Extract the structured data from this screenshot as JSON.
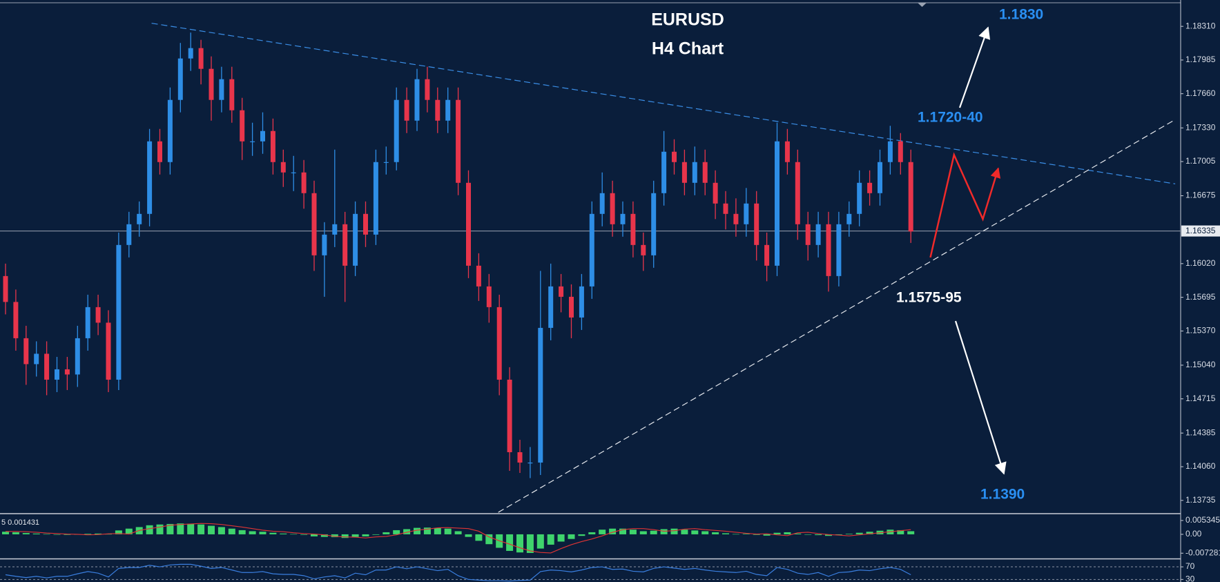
{
  "chart_data": {
    "type": "candlestick",
    "title": "EURUSD",
    "subtitle": "H4 Chart",
    "up_color": "#2e8ee6",
    "down_color": "#e8354b",
    "open": [
      1.159,
      1.1565,
      1.153,
      1.1505,
      1.1515,
      1.149,
      1.15,
      1.1495,
      1.153,
      1.156,
      1.1545,
      1.149,
      1.162,
      1.164,
      1.165,
      1.172,
      1.17,
      1.176,
      1.18,
      1.181,
      1.179,
      1.176,
      1.178,
      1.175,
      1.172,
      1.172,
      1.173,
      1.17,
      1.169,
      1.169,
      1.167,
      1.161,
      1.163,
      1.164,
      1.16,
      1.165,
      1.163,
      1.17,
      1.17,
      1.176,
      1.174,
      1.178,
      1.176,
      1.174,
      1.176,
      1.168,
      1.16,
      1.158,
      1.156,
      1.149,
      1.142,
      1.141,
      1.141,
      1.154,
      1.158,
      1.157,
      1.155,
      1.158,
      1.165,
      1.167,
      1.164,
      1.165,
      1.162,
      1.161,
      1.167,
      1.171,
      1.17,
      1.168,
      1.17,
      1.168,
      1.166,
      1.165,
      1.164,
      1.166,
      1.162,
      1.16,
      1.172,
      1.17,
      1.164,
      1.162,
      1.164,
      1.159,
      1.164,
      1.165,
      1.168,
      1.167,
      1.17,
      1.172,
      1.17
    ],
    "high": [
      1.1602,
      1.1577,
      1.1542,
      1.1527,
      1.1527,
      1.1512,
      1.1512,
      1.1542,
      1.1572,
      1.1572,
      1.1557,
      1.1632,
      1.1652,
      1.1662,
      1.1732,
      1.1732,
      1.1772,
      1.1815,
      1.1825,
      1.1818,
      1.1802,
      1.1792,
      1.1792,
      1.1762,
      1.1738,
      1.1748,
      1.1742,
      1.1712,
      1.1706,
      1.1702,
      1.1682,
      1.1642,
      1.1712,
      1.1652,
      1.1662,
      1.1662,
      1.1712,
      1.1715,
      1.1772,
      1.1772,
      1.179,
      1.1792,
      1.1772,
      1.1772,
      1.1772,
      1.1692,
      1.1612,
      1.1592,
      1.1572,
      1.1502,
      1.1432,
      1.1425,
      1.1595,
      1.1602,
      1.1592,
      1.1582,
      1.1592,
      1.1662,
      1.169,
      1.1682,
      1.1662,
      1.1662,
      1.1632,
      1.1682,
      1.173,
      1.1722,
      1.1712,
      1.1715,
      1.1712,
      1.1692,
      1.1672,
      1.1665,
      1.1675,
      1.1672,
      1.1632,
      1.1738,
      1.1732,
      1.1712,
      1.1652,
      1.1652,
      1.1652,
      1.1652,
      1.1662,
      1.1692,
      1.1692,
      1.1712,
      1.1735,
      1.1728,
      1.1712
    ],
    "low": [
      1.1553,
      1.1518,
      1.1485,
      1.1493,
      1.1475,
      1.1478,
      1.148,
      1.1483,
      1.1518,
      1.1533,
      1.1478,
      1.148,
      1.1608,
      1.1628,
      1.1638,
      1.1688,
      1.1688,
      1.1748,
      1.1788,
      1.1775,
      1.174,
      1.1748,
      1.1738,
      1.1702,
      1.1706,
      1.1708,
      1.1688,
      1.1676,
      1.1672,
      1.1655,
      1.1595,
      1.157,
      1.1618,
      1.1565,
      1.159,
      1.1618,
      1.162,
      1.1688,
      1.1692,
      1.1728,
      1.173,
      1.1748,
      1.1728,
      1.1728,
      1.1668,
      1.1588,
      1.1566,
      1.1545,
      1.1475,
      1.1402,
      1.14,
      1.1395,
      1.1398,
      1.1528,
      1.1555,
      1.153,
      1.1538,
      1.1568,
      1.1638,
      1.1628,
      1.1628,
      1.1608,
      1.1595,
      1.1598,
      1.1658,
      1.1688,
      1.1668,
      1.1668,
      1.1668,
      1.1645,
      1.1635,
      1.1628,
      1.1628,
      1.1605,
      1.1585,
      1.159,
      1.1688,
      1.1625,
      1.1605,
      1.1608,
      1.1575,
      1.158,
      1.1628,
      1.1638,
      1.1658,
      1.1658,
      1.1688,
      1.1688,
      1.1622
    ],
    "close": [
      1.1565,
      1.153,
      1.1505,
      1.1515,
      1.149,
      1.15,
      1.1495,
      1.153,
      1.156,
      1.1545,
      1.149,
      1.162,
      1.164,
      1.165,
      1.172,
      1.17,
      1.176,
      1.18,
      1.181,
      1.179,
      1.176,
      1.178,
      1.175,
      1.172,
      1.172,
      1.173,
      1.17,
      1.169,
      1.169,
      1.167,
      1.161,
      1.163,
      1.164,
      1.16,
      1.165,
      1.163,
      1.17,
      1.17,
      1.176,
      1.174,
      1.178,
      1.176,
      1.174,
      1.176,
      1.168,
      1.16,
      1.158,
      1.156,
      1.149,
      1.142,
      1.141,
      1.141,
      1.154,
      1.158,
      1.157,
      1.155,
      1.158,
      1.165,
      1.167,
      1.164,
      1.165,
      1.162,
      1.161,
      1.167,
      1.171,
      1.17,
      1.168,
      1.17,
      1.168,
      1.166,
      1.165,
      1.164,
      1.166,
      1.162,
      1.16,
      1.172,
      1.17,
      1.164,
      1.162,
      1.164,
      1.159,
      1.164,
      1.165,
      1.168,
      1.167,
      1.17,
      1.172,
      1.17,
      1.1633
    ],
    "ylim": [
      1.13623,
      1.18527
    ],
    "yticks": [
      {
        "value": 1.1831,
        "label": "1.18310"
      },
      1.17985,
      {
        "value": 1.1766,
        "label": "1.17660"
      },
      {
        "value": 1.1733,
        "label": "1.17330"
      },
      {
        "value": 1.17005,
        "label": "1.17005"
      },
      1.16675,
      {
        "value": 1.1602,
        "label": "1.16020"
      },
      1.15695,
      {
        "value": 1.1537,
        "label": "1.15370"
      },
      {
        "value": 1.1504,
        "label": "1.15040"
      },
      1.14715,
      1.14385,
      {
        "value": 1.1406,
        "label": "1.14060"
      },
      1.13735
    ],
    "current_price": 1.16335,
    "trendlines": [
      {
        "color": "#3b8fe8",
        "points": [
          [
            14.2,
            1.1834
          ],
          [
            113.7,
            1.1679
          ]
        ]
      },
      {
        "color": "#e6e9ee",
        "points": [
          [
            47.9,
            1.1362
          ],
          [
            113.7,
            1.1741
          ]
        ]
      }
    ],
    "projection": {
      "color": "#f02a2a",
      "points": [
        [
          89.9,
          1.1608
        ],
        [
          92.2,
          1.1707
        ],
        [
          95.0,
          1.1645
        ],
        [
          96.5,
          1.1694
        ]
      ]
    },
    "annotations": [
      "1.1830",
      "1.1720-40",
      "1.1575-95",
      "1.1390"
    ],
    "macd": {
      "label": "5 0.001431",
      "hist_color": "#3fd46c",
      "signal_color": "#e03434",
      "histogram": [
        0.001,
        0.0008,
        0.0005,
        0.0003,
        0.0001,
        0.0,
        -0.0002,
        -0.0001,
        0.0002,
        0.0003,
        0.0001,
        0.0015,
        0.0022,
        0.0028,
        0.0035,
        0.0038,
        0.004,
        0.0042,
        0.0041,
        0.0038,
        0.0033,
        0.0028,
        0.0022,
        0.0016,
        0.0012,
        0.001,
        0.0006,
        0.0003,
        0.0001,
        -0.0002,
        -0.0008,
        -0.001,
        -0.0011,
        -0.0014,
        -0.001,
        -0.0008,
        -0.0002,
        0.0008,
        0.0016,
        0.002,
        0.0025,
        0.0026,
        0.0024,
        0.0022,
        0.0012,
        -0.001,
        -0.0025,
        -0.0038,
        -0.0052,
        -0.0064,
        -0.007,
        -0.0072,
        -0.0055,
        -0.004,
        -0.0028,
        -0.0018,
        -0.0006,
        0.0008,
        0.0018,
        0.0022,
        0.0022,
        0.0018,
        0.0012,
        0.0014,
        0.002,
        0.0022,
        0.0018,
        0.0015,
        0.0012,
        0.0008,
        0.0004,
        0.0001,
        0.0002,
        -0.0002,
        -0.0005,
        0.0006,
        0.0008,
        0.0003,
        -0.0001,
        -0.0003,
        -0.0006,
        -0.0002,
        0.0002,
        0.0006,
        0.001,
        0.0014,
        0.0018,
        0.0016,
        0.0012
      ],
      "signal": [
        0.0011,
        0.0011,
        0.001,
        0.0008,
        0.0005,
        0.0003,
        0.0001,
        0.0,
        -0.0002,
        -0.0001,
        0.0002,
        0.0003,
        0.0001,
        0.0015,
        0.0022,
        0.0028,
        0.0035,
        0.0038,
        0.004,
        0.0042,
        0.0041,
        0.0038,
        0.0033,
        0.0028,
        0.0022,
        0.0016,
        0.0012,
        0.001,
        0.0006,
        0.0003,
        0.0001,
        -0.0002,
        -0.0008,
        -0.001,
        -0.0011,
        -0.0014,
        -0.001,
        -0.0008,
        -0.0002,
        0.0008,
        0.0016,
        0.002,
        0.0025,
        0.0026,
        0.0024,
        0.0022,
        0.0012,
        -0.001,
        -0.0025,
        -0.0038,
        -0.0052,
        -0.0064,
        -0.007,
        -0.0072,
        -0.0055,
        -0.004,
        -0.0028,
        -0.0018,
        -0.0006,
        0.0008,
        0.0018,
        0.0022,
        0.0022,
        0.0018,
        0.0012,
        0.0014,
        0.002,
        0.0022,
        0.0018,
        0.0015,
        0.0012,
        0.0008,
        0.0004,
        0.0001,
        0.0002,
        -0.0002,
        -0.0005,
        0.0006,
        0.0008,
        0.0003,
        -0.0001,
        -0.0003,
        -0.0006,
        -0.0002,
        0.0002,
        0.0006,
        0.001,
        0.0014,
        0.0018
      ],
      "ylim": [
        -0.00908,
        0.00745
      ],
      "yticks": [
        0.005345,
        {
          "value": 0,
          "label": "0.00"
        },
        -0.007281
      ]
    },
    "rsi": {
      "color": "#3a7fe0",
      "values": [
        45,
        40,
        36,
        40,
        35,
        40,
        40,
        48,
        55,
        50,
        38,
        65,
        68,
        68,
        75,
        70,
        76,
        78,
        78,
        72,
        65,
        68,
        60,
        52,
        52,
        55,
        48,
        46,
        46,
        42,
        32,
        38,
        42,
        35,
        50,
        45,
        60,
        60,
        70,
        64,
        70,
        64,
        58,
        62,
        42,
        30,
        28,
        26,
        26,
        25,
        27,
        28,
        55,
        60,
        58,
        54,
        60,
        68,
        70,
        62,
        63,
        56,
        54,
        65,
        70,
        66,
        62,
        65,
        60,
        56,
        54,
        52,
        56,
        46,
        42,
        68,
        62,
        50,
        46,
        52,
        40,
        52,
        54,
        60,
        58,
        64,
        68,
        62,
        45
      ],
      "ylim": [
        22,
        92
      ],
      "yticks": [
        70,
        30
      ]
    }
  }
}
